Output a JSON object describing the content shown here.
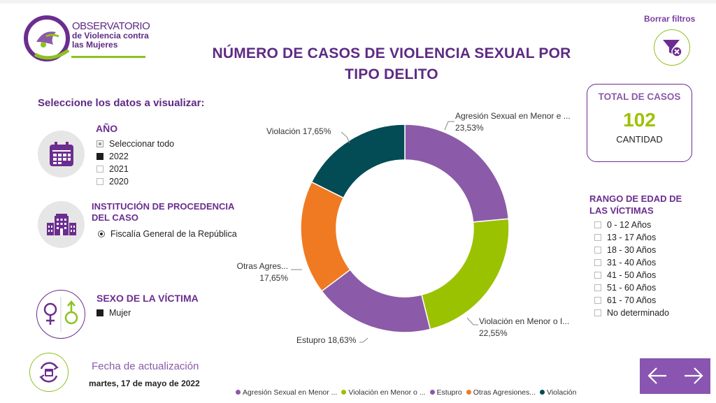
{
  "logo": {
    "line1": "OBSERVATORIO",
    "line2": "de Violencia contra",
    "line3": "las Mujeres"
  },
  "title": {
    "line1": "NÚMERO DE CASOS DE VIOLENCIA SEXUAL POR",
    "line2": "TIPO DELITO"
  },
  "clear_filters": {
    "label": "Borrar filtros",
    "icon": "filter-clear-icon"
  },
  "select_label": "Seleccione los datos a visualizar:",
  "year": {
    "heading": "AÑO",
    "options": [
      {
        "label": "Seleccionar todo",
        "state": "partial"
      },
      {
        "label": "2022",
        "state": "checked"
      },
      {
        "label": "2021",
        "state": "unchecked"
      },
      {
        "label": "2020",
        "state": "unchecked"
      }
    ]
  },
  "institution": {
    "heading1": "INSTITUCIÓN DE PROCEDENCIA",
    "heading2": "DEL CASO",
    "option": "Fiscalía General de la República"
  },
  "sex": {
    "heading": "SEXO DE LA VÍCTIMA",
    "option": "Mujer"
  },
  "update": {
    "label": "Fecha de actualización",
    "date": "martes, 17 de mayo de 2022"
  },
  "total": {
    "heading": "TOTAL DE CASOS",
    "value": "102",
    "caption": "CANTIDAD"
  },
  "age": {
    "heading1": "RANGO DE EDAD DE",
    "heading2": "LAS VÍCTIMAS",
    "options": [
      "0 - 12 Años",
      "13 - 17 Años",
      "18 - 30 Años",
      "31 - 40 Años",
      "41 - 50 Años",
      "51 - 60 Años",
      "61 - 70 Años",
      "No determinado"
    ]
  },
  "colors": {
    "purple": "#8b5aa9",
    "green": "#9bc200",
    "orange": "#f07a22",
    "teal": "#034b55",
    "brand": "#5e2a84"
  },
  "chart_data": {
    "type": "pie",
    "donut": true,
    "slices": [
      {
        "name": "Agresión Sexual en Menor e ...",
        "legend": "Agresión Sexual en Menor ...",
        "value": 23.53,
        "label": "23,53%",
        "color": "#8b5aa9"
      },
      {
        "name": "Violación en Menor o I...",
        "legend": "Violación en Menor o ...",
        "value": 22.55,
        "label": "22,55%",
        "color": "#9bc200"
      },
      {
        "name": "Estupro",
        "legend": "Estupro",
        "value": 18.63,
        "label": "18,63%",
        "color": "#8b5aa9"
      },
      {
        "name": "Otras Agres...",
        "legend": "Otras Agresiones...",
        "value": 17.65,
        "label": "17,65%",
        "color": "#f07a22"
      },
      {
        "name": "Violación",
        "legend": "Violación",
        "value": 17.65,
        "label": "17,65%",
        "color": "#034b55"
      }
    ],
    "legend_position": "bottom"
  }
}
